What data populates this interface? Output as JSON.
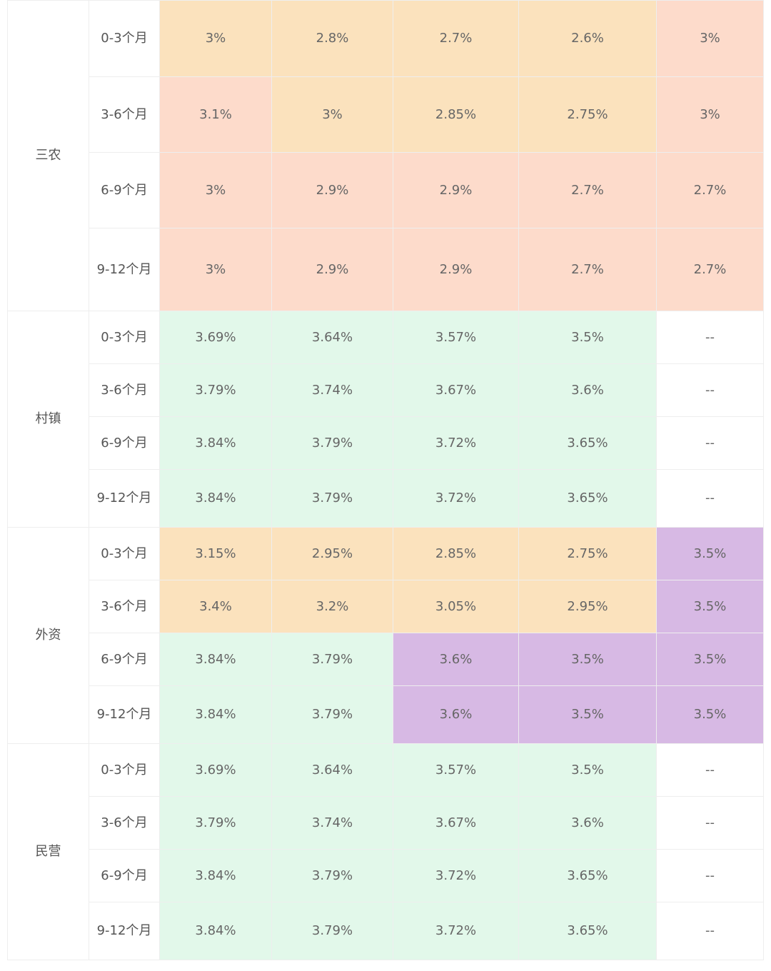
{
  "colors": {
    "white": "#ffffff",
    "orange": "#fbe2bd",
    "peach": "#fddbcb",
    "green": "#e2f8ea",
    "purple": "#d7b9e4"
  },
  "groups": [
    {
      "name": "三农",
      "rows": [
        {
          "term": "0-3个月",
          "values": [
            "3%",
            "2.8%",
            "2.7%",
            "2.6%",
            "3%"
          ],
          "colors": [
            "orange",
            "orange",
            "orange",
            "orange",
            "peach"
          ]
        },
        {
          "term": "3-6个月",
          "values": [
            "3.1%",
            "3%",
            "2.85%",
            "2.75%",
            "3%"
          ],
          "colors": [
            "peach",
            "orange",
            "orange",
            "orange",
            "peach"
          ]
        },
        {
          "term": "6-9个月",
          "values": [
            "3%",
            "2.9%",
            "2.9%",
            "2.7%",
            "2.7%"
          ],
          "colors": [
            "peach",
            "peach",
            "peach",
            "peach",
            "peach"
          ]
        },
        {
          "term": "9-12个月",
          "values": [
            "3%",
            "2.9%",
            "2.9%",
            "2.7%",
            "2.7%"
          ],
          "colors": [
            "peach",
            "peach",
            "peach",
            "peach",
            "peach"
          ]
        }
      ]
    },
    {
      "name": "村镇",
      "rows": [
        {
          "term": "0-3个月",
          "values": [
            "3.69%",
            "3.64%",
            "3.57%",
            "3.5%",
            "--"
          ],
          "colors": [
            "green",
            "green",
            "green",
            "green",
            "white"
          ]
        },
        {
          "term": "3-6个月",
          "values": [
            "3.79%",
            "3.74%",
            "3.67%",
            "3.6%",
            "--"
          ],
          "colors": [
            "green",
            "green",
            "green",
            "green",
            "white"
          ]
        },
        {
          "term": "6-9个月",
          "values": [
            "3.84%",
            "3.79%",
            "3.72%",
            "3.65%",
            "--"
          ],
          "colors": [
            "green",
            "green",
            "green",
            "green",
            "white"
          ]
        },
        {
          "term": "9-12个月",
          "values": [
            "3.84%",
            "3.79%",
            "3.72%",
            "3.65%",
            "--"
          ],
          "colors": [
            "green",
            "green",
            "green",
            "green",
            "white"
          ]
        }
      ]
    },
    {
      "name": "外资",
      "rows": [
        {
          "term": "0-3个月",
          "values": [
            "3.15%",
            "2.95%",
            "2.85%",
            "2.75%",
            "3.5%"
          ],
          "colors": [
            "orange",
            "orange",
            "orange",
            "orange",
            "purple"
          ]
        },
        {
          "term": "3-6个月",
          "values": [
            "3.4%",
            "3.2%",
            "3.05%",
            "2.95%",
            "3.5%"
          ],
          "colors": [
            "orange",
            "orange",
            "orange",
            "orange",
            "purple"
          ]
        },
        {
          "term": "6-9个月",
          "values": [
            "3.84%",
            "3.79%",
            "3.6%",
            "3.5%",
            "3.5%"
          ],
          "colors": [
            "green",
            "green",
            "purple",
            "purple",
            "purple"
          ]
        },
        {
          "term": "9-12个月",
          "values": [
            "3.84%",
            "3.79%",
            "3.6%",
            "3.5%",
            "3.5%"
          ],
          "colors": [
            "green",
            "green",
            "purple",
            "purple",
            "purple"
          ]
        }
      ]
    },
    {
      "name": "民营",
      "rows": [
        {
          "term": "0-3个月",
          "values": [
            "3.69%",
            "3.64%",
            "3.57%",
            "3.5%",
            "--"
          ],
          "colors": [
            "green",
            "green",
            "green",
            "green",
            "white"
          ]
        },
        {
          "term": "3-6个月",
          "values": [
            "3.79%",
            "3.74%",
            "3.67%",
            "3.6%",
            "--"
          ],
          "colors": [
            "green",
            "green",
            "green",
            "green",
            "white"
          ]
        },
        {
          "term": "6-9个月",
          "values": [
            "3.84%",
            "3.79%",
            "3.72%",
            "3.65%",
            "--"
          ],
          "colors": [
            "green",
            "green",
            "green",
            "green",
            "white"
          ]
        },
        {
          "term": "9-12个月",
          "values": [
            "3.84%",
            "3.79%",
            "3.72%",
            "3.65%",
            "--"
          ],
          "colors": [
            "green",
            "green",
            "green",
            "green",
            "white"
          ]
        }
      ]
    }
  ]
}
